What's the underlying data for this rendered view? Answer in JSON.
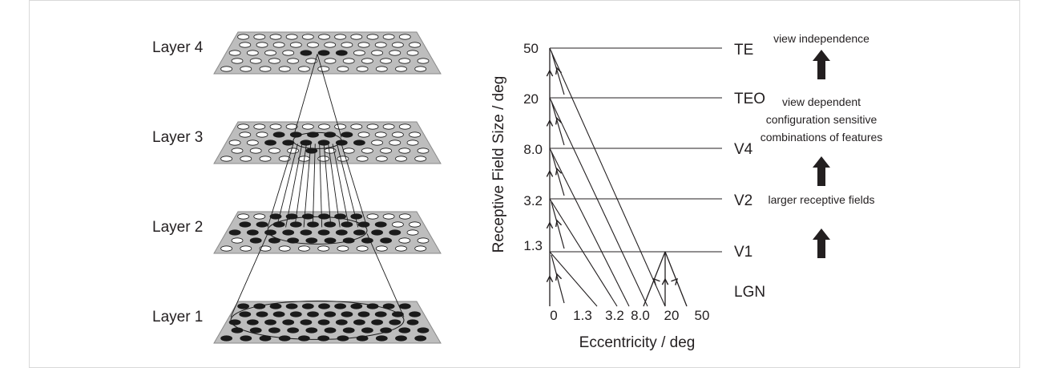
{
  "colors": {
    "plane_fill": "#bdbdbd",
    "plane_stroke": "#8a8a8a",
    "ink": "#231f20",
    "frame": "#d9d9d9"
  },
  "layers": {
    "layer4": "Layer 4",
    "layer3": "Layer 3",
    "layer2": "Layer 2",
    "layer1": "Layer 1"
  },
  "plot": {
    "ylabel": "Receptive Field Size / deg",
    "xlabel": "Eccentricity / deg",
    "yticks": [
      "50",
      "20",
      "8.0",
      "3.2",
      "1.3"
    ],
    "xticks": [
      "0",
      "1.3",
      "3.2",
      "8.0",
      "20",
      "50"
    ],
    "areas": [
      "TE",
      "TEO",
      "V4",
      "V2",
      "V1",
      "LGN"
    ]
  },
  "annotations": {
    "top": "view independence",
    "mid_line1": "view dependent",
    "mid_line2": "configuration sensitive",
    "mid_line3": "combinations of features",
    "bottom": "larger receptive fields"
  },
  "icons": [
    "arrow-up-icon",
    "arrow-up-icon",
    "arrow-up-icon"
  ]
}
